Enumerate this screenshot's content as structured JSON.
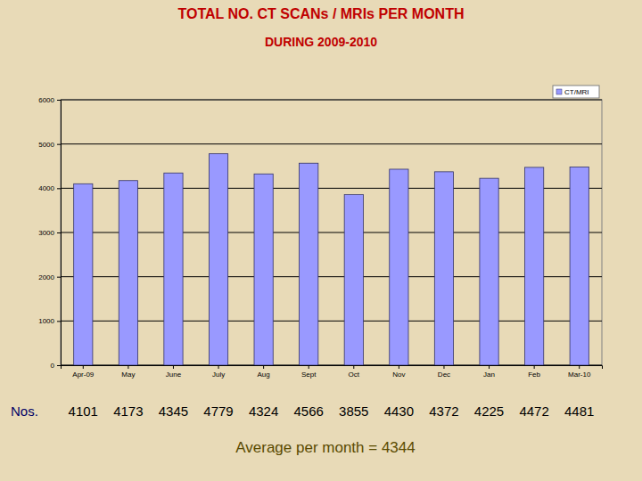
{
  "chart_data": {
    "type": "bar",
    "title": "TOTAL NO. CT SCANs / MRIs  PER MONTH",
    "subtitle": "DURING 2009-2010",
    "categories": [
      "Apr-09",
      "May",
      "June",
      "July",
      "Aug",
      "Sept",
      "Oct",
      "Nov",
      "Dec",
      "Jan",
      "Feb",
      "Mar-10"
    ],
    "series": [
      {
        "name": "CT/MRI",
        "color": "#9999ff",
        "values": [
          4101,
          4173,
          4345,
          4779,
          4324,
          4566,
          3855,
          4430,
          4372,
          4225,
          4472,
          4481
        ]
      }
    ],
    "ylim": [
      0,
      6000
    ],
    "yticks": [
      0,
      1000,
      2000,
      3000,
      4000,
      5000,
      6000
    ],
    "grid": true,
    "legend": "top-right",
    "data_labels": true,
    "annotations": [
      "Nos.",
      "Average per month = 4344"
    ]
  }
}
